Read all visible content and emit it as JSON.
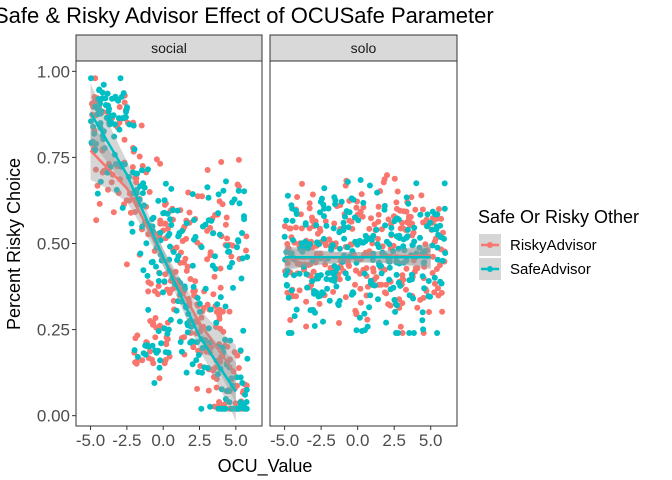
{
  "chart_data": {
    "type": "scatter",
    "title": "Safe & Risky Advisor Effect of OCUSafe Parameter",
    "xlabel": "OCU_Value",
    "ylabel": "Percent Risky Choice",
    "xlim": [
      -6.0,
      6.8
    ],
    "ylim": [
      -0.03,
      1.03
    ],
    "x_ticks": [
      -5.0,
      -2.5,
      0.0,
      2.5,
      5.0
    ],
    "x_tick_labels": [
      "-5.0",
      "-2.5",
      "0.0",
      "2.5",
      "5.0"
    ],
    "y_ticks": [
      0.0,
      0.25,
      0.5,
      0.75,
      1.0
    ],
    "y_tick_labels": [
      "0.00",
      "0.25",
      "0.50",
      "0.75",
      "1.00"
    ],
    "grid": false,
    "legend": {
      "title": "Safe Or Risky Other",
      "position": "right",
      "entries": [
        {
          "name": "RiskyAdvisor",
          "color": "#F8766D"
        },
        {
          "name": "SafeAdvisor",
          "color": "#00BFC4"
        }
      ]
    },
    "panels": [
      {
        "name": "social",
        "trend": [
          {
            "series": "RiskyAdvisor",
            "x": [
              -5.0,
              -2.5,
              0.0,
              2.5,
              5.0
            ],
            "y": [
              0.77,
              0.66,
              0.46,
              0.27,
              0.12
            ]
          },
          {
            "series": "SafeAdvisor",
            "x": [
              -5.0,
              -2.5,
              0.0,
              2.5,
              5.0
            ],
            "y": [
              0.88,
              0.7,
              0.46,
              0.23,
              0.07
            ]
          }
        ],
        "scatter_summary": [
          {
            "series": "RiskyAdvisor",
            "x_range": [
              -5.0,
              5.5
            ],
            "y_range": [
              0.02,
              0.97
            ]
          },
          {
            "series": "SafeAdvisor",
            "x_range": [
              -5.0,
              6.0
            ],
            "y_range": [
              0.04,
              0.98
            ]
          }
        ]
      },
      {
        "name": "solo",
        "trend": [
          {
            "series": "RiskyAdvisor",
            "x": [
              -5.0,
              0.0,
              5.0
            ],
            "y": [
              0.455,
              0.46,
              0.465
            ]
          },
          {
            "series": "SafeAdvisor",
            "x": [
              -5.0,
              0.0,
              5.0
            ],
            "y": [
              0.46,
              0.46,
              0.46
            ]
          }
        ],
        "scatter_summary": [
          {
            "series": "RiskyAdvisor",
            "x_range": [
              -5.0,
              6.0
            ],
            "y_range": [
              0.24,
              0.73
            ]
          },
          {
            "series": "SafeAdvisor",
            "x_range": [
              -5.0,
              6.0
            ],
            "y_range": [
              0.25,
              0.76
            ]
          }
        ]
      }
    ]
  }
}
